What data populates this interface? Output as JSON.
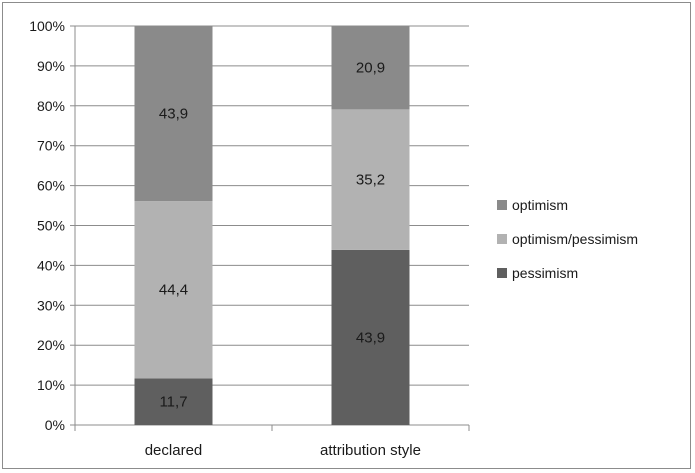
{
  "chart_data": {
    "type": "bar",
    "stacked": true,
    "percent_stacked": true,
    "categories": [
      "declared",
      "attribution style"
    ],
    "series": [
      {
        "name": "pessimism",
        "values": [
          11.7,
          43.9
        ],
        "color": "#5f5f5f"
      },
      {
        "name": "optimism/pessimism",
        "values": [
          44.4,
          35.2
        ],
        "color": "#b2b2b2"
      },
      {
        "name": "optimism",
        "values": [
          43.9,
          20.9
        ],
        "color": "#8a8a8a"
      }
    ],
    "data_labels": [
      [
        "11,7",
        "43,9"
      ],
      [
        "44,4",
        "35,2"
      ],
      [
        "43,9",
        "20,9"
      ]
    ],
    "y_ticks": [
      "0%",
      "10%",
      "20%",
      "30%",
      "40%",
      "50%",
      "60%",
      "70%",
      "80%",
      "90%",
      "100%"
    ],
    "ylim": [
      0,
      100
    ],
    "grid": true,
    "legend": {
      "position": "right",
      "order": [
        "optimism",
        "optimism/pessimism",
        "pessimism"
      ]
    }
  }
}
